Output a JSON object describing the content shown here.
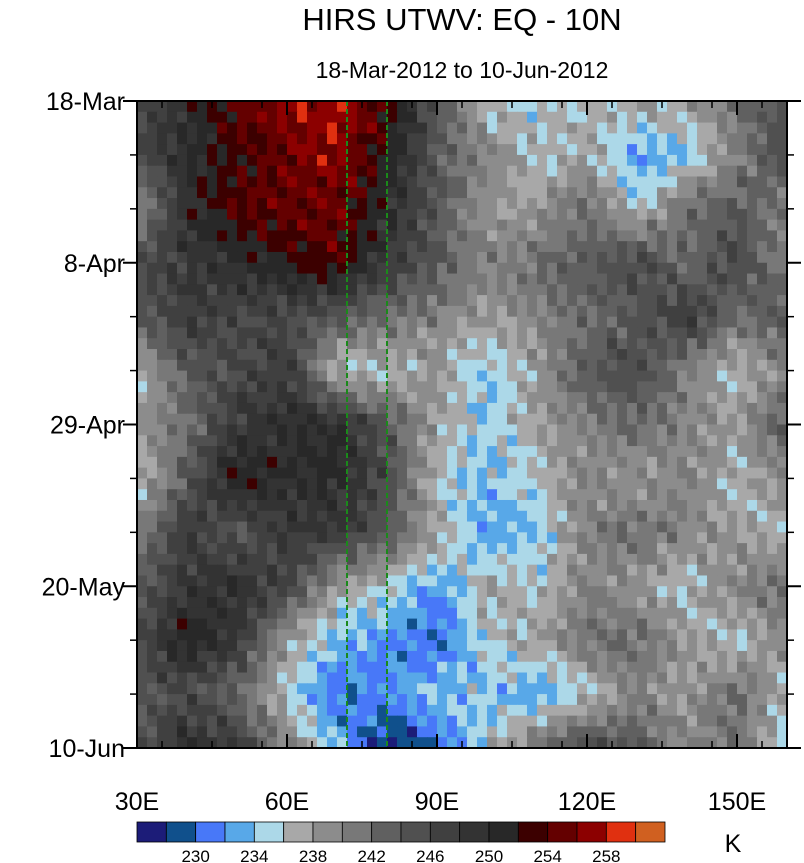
{
  "chart_data": {
    "type": "heatmap",
    "title": "HIRS UTWV: EQ - 10N",
    "subtitle": "18-Mar-2012 to 10-Jun-2012",
    "xlabel": "",
    "ylabel": "",
    "x_range": [
      30,
      160
    ],
    "y_range_days": [
      0,
      84
    ],
    "x_ticks": [
      {
        "value": 30,
        "label": "30E"
      },
      {
        "value": 60,
        "label": "60E"
      },
      {
        "value": 90,
        "label": "90E"
      },
      {
        "value": 120,
        "label": "120E"
      },
      {
        "value": 150,
        "label": "150E"
      }
    ],
    "y_ticks": [
      {
        "day": 0,
        "label": "18-Mar"
      },
      {
        "day": 21,
        "label": "8-Apr"
      },
      {
        "day": 42,
        "label": "29-Apr"
      },
      {
        "day": 63,
        "label": "20-May"
      },
      {
        "day": 84,
        "label": "10-Jun"
      }
    ],
    "reference_lines_lon": [
      72,
      80
    ],
    "reference_line_color": "#1a8a1a",
    "lon": [
      30,
      40,
      50,
      60,
      70,
      80,
      90,
      100,
      110,
      120,
      130,
      140,
      150,
      160
    ],
    "day": [
      0,
      7,
      14,
      21,
      28,
      35,
      42,
      49,
      56,
      63,
      70,
      77,
      84
    ],
    "values": [
      [
        246,
        250,
        254,
        257,
        258,
        254,
        244,
        236,
        236,
        236,
        238,
        238,
        242,
        244
      ],
      [
        246,
        250,
        253,
        255,
        257,
        252,
        244,
        240,
        236,
        238,
        232,
        234,
        240,
        246
      ],
      [
        238,
        250,
        254,
        255,
        255,
        250,
        244,
        238,
        238,
        242,
        236,
        242,
        244,
        240
      ],
      [
        246,
        248,
        250,
        252,
        254,
        248,
        244,
        240,
        242,
        244,
        246,
        242,
        246,
        240
      ],
      [
        244,
        248,
        246,
        246,
        244,
        242,
        240,
        238,
        240,
        242,
        244,
        248,
        242,
        244
      ],
      [
        236,
        244,
        246,
        248,
        236,
        236,
        238,
        234,
        238,
        244,
        246,
        240,
        236,
        240
      ],
      [
        238,
        242,
        248,
        250,
        250,
        244,
        238,
        234,
        238,
        240,
        242,
        240,
        238,
        244
      ],
      [
        236,
        244,
        252,
        250,
        250,
        246,
        236,
        234,
        236,
        240,
        238,
        240,
        236,
        240
      ],
      [
        240,
        248,
        244,
        248,
        248,
        244,
        238,
        232,
        234,
        240,
        242,
        240,
        238,
        236
      ],
      [
        244,
        248,
        250,
        246,
        238,
        236,
        232,
        238,
        236,
        240,
        238,
        236,
        240,
        242
      ],
      [
        246,
        252,
        248,
        238,
        234,
        232,
        230,
        236,
        238,
        242,
        242,
        238,
        236,
        240
      ],
      [
        244,
        246,
        242,
        236,
        230,
        232,
        234,
        234,
        232,
        236,
        240,
        238,
        242,
        236
      ],
      [
        244,
        250,
        248,
        240,
        234,
        227,
        230,
        236,
        242,
        246,
        244,
        240,
        242,
        234
      ]
    ],
    "colorbar": {
      "units": "K",
      "levels": [
        228,
        230,
        232,
        234,
        236,
        238,
        240,
        242,
        244,
        246,
        248,
        250,
        252,
        254,
        256,
        258,
        260
      ],
      "labels": [
        "230",
        "234",
        "238",
        "242",
        "246",
        "250",
        "254",
        "258"
      ],
      "label_values": [
        230,
        234,
        238,
        242,
        246,
        250,
        254,
        258
      ],
      "colors": [
        "#1c1c78",
        "#10508c",
        "#4878f8",
        "#58a8e8",
        "#acd8e8",
        "#a8a8a8",
        "#8c8c8c",
        "#787878",
        "#606060",
        "#505050",
        "#404040",
        "#333333",
        "#282828",
        "#3c0000",
        "#640000",
        "#8c0000",
        "#e03010",
        "#d06020"
      ]
    }
  }
}
